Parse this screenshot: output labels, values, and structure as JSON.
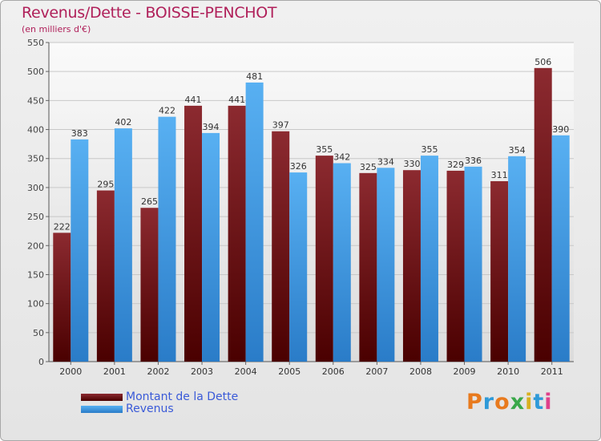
{
  "title": "Revenus/Dette - BOISSE-PENCHOT",
  "subtitle": "(en milliers d'€)",
  "logo": "Proxiti",
  "colors": {
    "dette": "#7a1010",
    "revenus": "#3f9fe8",
    "title": "#b0205a",
    "legend_text": "#3a5ad8"
  },
  "chart_data": {
    "type": "bar",
    "categories": [
      "2000",
      "2001",
      "2002",
      "2003",
      "2004",
      "2005",
      "2006",
      "2007",
      "2008",
      "2009",
      "2010",
      "2011"
    ],
    "series": [
      {
        "name": "Montant de la Dette",
        "values": [
          222,
          295,
          265,
          441,
          441,
          397,
          355,
          325,
          330,
          329,
          311,
          506
        ]
      },
      {
        "name": "Revenus",
        "values": [
          383,
          402,
          422,
          394,
          481,
          326,
          342,
          334,
          355,
          336,
          354,
          390
        ]
      }
    ],
    "ylim": [
      0,
      550
    ],
    "yticks": [
      0,
      50,
      100,
      150,
      200,
      250,
      300,
      350,
      400,
      450,
      500,
      550
    ],
    "grid": true,
    "legend": "bottom-left"
  }
}
